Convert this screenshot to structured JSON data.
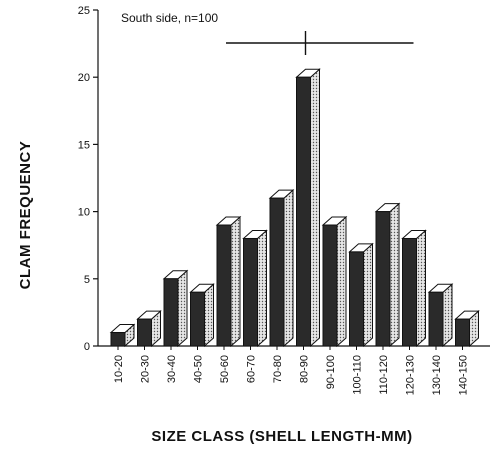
{
  "chart_data": {
    "type": "bar",
    "style": "3d",
    "title": "",
    "annotation": "South side, n=100",
    "xlabel": "SIZE CLASS (SHELL LENGTH-MM)",
    "ylabel": "CLAM FREQUENCY",
    "ylim": [
      0,
      25
    ],
    "yticks": [
      0,
      5,
      10,
      15,
      20,
      25
    ],
    "categories": [
      "10-20",
      "20-30",
      "30-40",
      "40-50",
      "50-60",
      "60-70",
      "70-80",
      "80-90",
      "90-100",
      "100-110",
      "110-120",
      "120-130",
      "130-140",
      "140-150"
    ],
    "values": [
      1,
      2,
      5,
      4,
      9,
      8,
      11,
      20,
      9,
      7,
      10,
      8,
      4,
      2
    ],
    "range_marker": {
      "from_class": "50-60",
      "to_class": "120-130",
      "center_class": "80-90"
    },
    "colors": {
      "bar_front": "#2a2a2a",
      "bar_top": "#ffffff",
      "bar_side": "#c8c8c8",
      "axis": "#111111"
    }
  }
}
